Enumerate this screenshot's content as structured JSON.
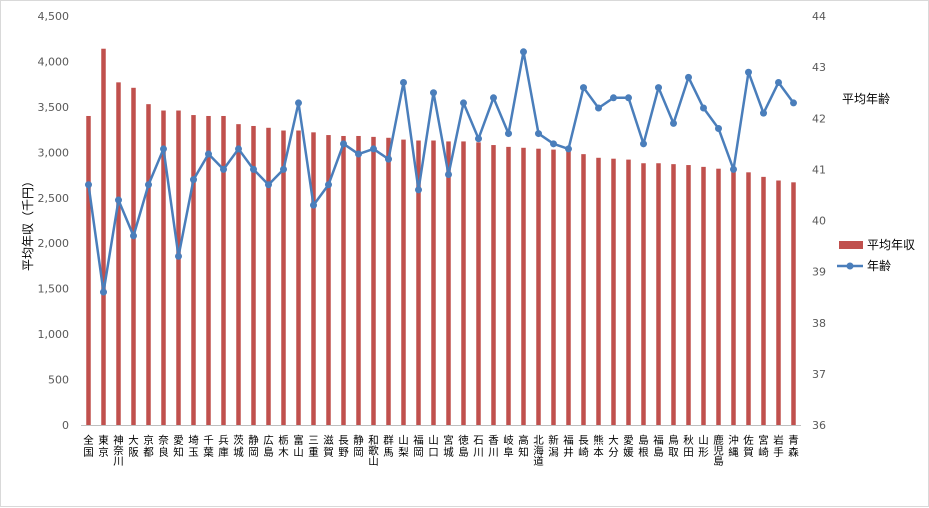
{
  "chart_data": {
    "type": "bar",
    "categories": [
      "全国",
      "東京",
      "神奈川",
      "大阪",
      "京都",
      "奈良",
      "愛知",
      "埼玉",
      "千葉",
      "兵庫",
      "茨城",
      "静岡",
      "広島",
      "栃木",
      "富山",
      "三重",
      "滋賀",
      "長野",
      "静岡",
      "和歌山",
      "群馬",
      "山梨",
      "福岡",
      "山口",
      "宮城",
      "徳島",
      "石川",
      "香川",
      "岐阜",
      "高知",
      "北海道",
      "新潟",
      "福井",
      "長崎",
      "熊本",
      "大分",
      "愛媛",
      "島根",
      "福島",
      "鳥取",
      "秋田",
      "山形",
      "鹿児島",
      "沖縄",
      "佐賀",
      "宮崎",
      "岩手",
      "青森"
    ],
    "series": [
      {
        "name": "平均年収",
        "axis": "left",
        "type": "bar",
        "color": "#c0504d",
        "values": [
          3400,
          4140,
          3770,
          3710,
          3530,
          3460,
          3460,
          3410,
          3400,
          3400,
          3310,
          3290,
          3270,
          3240,
          3240,
          3220,
          3190,
          3180,
          3180,
          3170,
          3160,
          3140,
          3130,
          3130,
          3120,
          3120,
          3110,
          3080,
          3060,
          3050,
          3040,
          3030,
          3010,
          2980,
          2940,
          2930,
          2920,
          2880,
          2880,
          2870,
          2860,
          2840,
          2820,
          2820,
          2780,
          2730,
          2690,
          2670
        ]
      },
      {
        "name": "年齢",
        "axis": "right",
        "type": "line",
        "color": "#4a7ebb",
        "values": [
          40.7,
          38.6,
          40.4,
          39.7,
          40.7,
          41.4,
          39.3,
          40.8,
          41.3,
          41.0,
          41.4,
          41.0,
          40.7,
          41.0,
          42.3,
          40.3,
          40.7,
          41.5,
          41.3,
          41.4,
          41.2,
          42.7,
          40.6,
          42.5,
          40.9,
          42.3,
          41.6,
          42.4,
          41.7,
          43.3,
          41.7,
          41.5,
          41.4,
          42.6,
          42.2,
          42.4,
          42.4,
          41.5,
          42.6,
          41.9,
          42.8,
          42.2,
          41.8,
          41.0,
          42.9,
          42.1,
          42.7,
          42.3
        ]
      }
    ],
    "left_axis": {
      "title": "平均年収（千円）",
      "ylim": [
        0,
        4500
      ],
      "ticks": [
        "0",
        "500",
        "1,000",
        "1,500",
        "2,000",
        "2,500",
        "3,000",
        "3,500",
        "4,000",
        "4,500"
      ]
    },
    "right_axis": {
      "title": "平均年齢",
      "ylim": [
        36,
        44
      ],
      "ticks": [
        "36",
        "37",
        "38",
        "39",
        "40",
        "41",
        "42",
        "43",
        "44"
      ]
    },
    "legend": {
      "placement": "right",
      "entries": [
        "平均年収",
        "年齢"
      ]
    },
    "grid": false
  }
}
